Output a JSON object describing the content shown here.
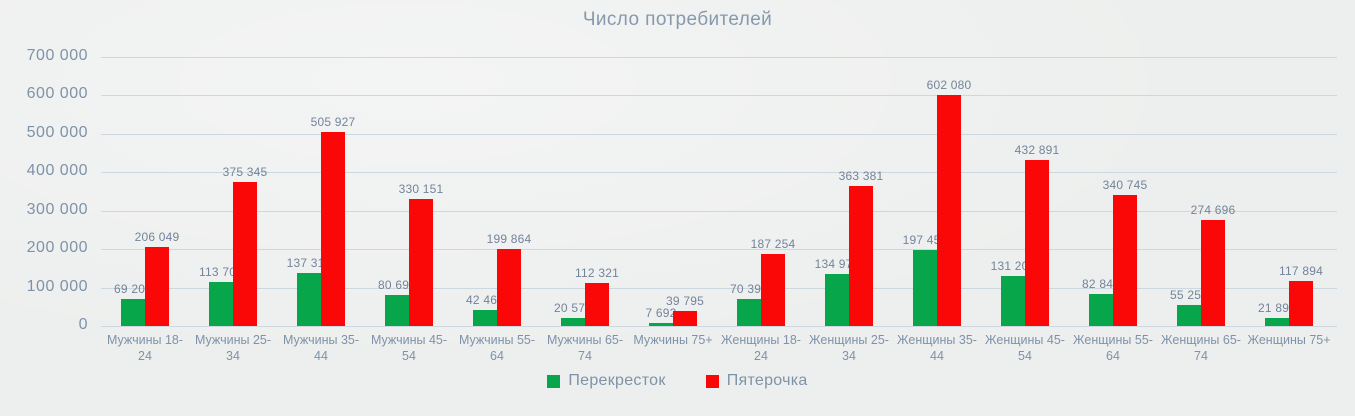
{
  "colors": {
    "background": "#edefee",
    "title_text": "#8799ad",
    "axis_label": "#7f92a8",
    "value_label": "#73849a",
    "gridline": "#cdd7df",
    "perekrestok_green": "#07a64a",
    "pyaterochka_red": "#fa0707"
  },
  "chart_data": {
    "type": "bar",
    "title": "Число потребителей",
    "categories": [
      "Мужчины 18-24",
      "Мужчины 25-34",
      "Мужчины 35-44",
      "Мужчины 45-54",
      "Мужчины 55-64",
      "Мужчины 65-74",
      "Мужчины 75+",
      "Женщины 18-24",
      "Женщины 25-34",
      "Женщины 35-44",
      "Женщины 45-54",
      "Женщины 55-64",
      "Женщины 65-74",
      "Женщины 75+"
    ],
    "series": [
      {
        "name": "Перекресток",
        "color": "#07a64a",
        "values": [
          69200,
          113703,
          137316,
          80695,
          42466,
          20576,
          7692,
          70398,
          134973,
          197450,
          131201,
          82846,
          55251,
          21899
        ]
      },
      {
        "name": "Пятерочка",
        "color": "#fa0707",
        "values": [
          206049,
          375345,
          505927,
          330151,
          199864,
          112321,
          39795,
          187254,
          363381,
          602080,
          432891,
          340745,
          274696,
          117894
        ]
      }
    ],
    "ylim": [
      0,
      700000
    ],
    "ytick_step": 100000,
    "ytick_labels": [
      "0",
      "100 000",
      "200 000",
      "300 000",
      "400 000",
      "500 000",
      "600 000",
      "700 000"
    ],
    "grid": true,
    "legend_position": "bottom",
    "value_labels_shown": true
  }
}
